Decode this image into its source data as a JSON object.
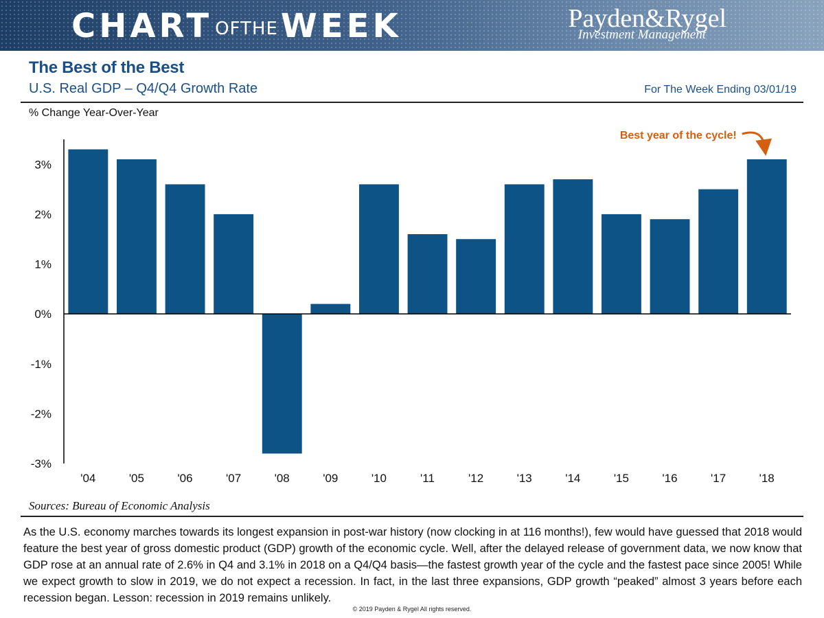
{
  "header": {
    "chart_word": "CHART",
    "of_the": "OFTHE",
    "week_word": "WEEK",
    "brand_name": "Payden&Rygel",
    "brand_tagline": "Investment Management"
  },
  "titles": {
    "main": "The Best of the Best",
    "sub": "U.S. Real GDP – Q4/Q4 Growth Rate",
    "week_ending": "For The Week Ending 03/01/19"
  },
  "chart_data": {
    "type": "bar",
    "title": "U.S. Real GDP – Q4/Q4 Growth Rate",
    "ylabel": "% Change Year-Over-Year",
    "xlabel": "",
    "categories": [
      "'04",
      "'05",
      "'06",
      "'07",
      "'08",
      "'09",
      "'10",
      "'11",
      "'12",
      "'13",
      "'14",
      "'15",
      "'16",
      "'17",
      "'18"
    ],
    "values": [
      3.3,
      3.1,
      2.6,
      2.0,
      -2.8,
      0.2,
      2.6,
      1.6,
      1.5,
      2.6,
      2.7,
      2.0,
      1.9,
      2.5,
      3.1
    ],
    "ylim": [
      -3,
      3.5
    ],
    "yticks": [
      3,
      2,
      1,
      0,
      -1,
      -2,
      -3
    ],
    "ytick_labels": [
      "3%",
      "2%",
      "1%",
      "0%",
      "-1%",
      "-2%",
      "-3%"
    ],
    "grid": false,
    "bar_color": "#0d5385",
    "annotation": {
      "text": "Best year of the cycle!",
      "target_category": "'18",
      "color": "#d45f0e"
    }
  },
  "footer": {
    "sources": "Sources: Bureau of Economic Analysis",
    "commentary": "As the U.S. economy marches towards its longest expansion in post-war history (now clocking in at 116 months!), few would have guessed that 2018 would feature the best year of gross domestic product (GDP) growth of the economic cycle. Well, after the delayed release of government data, we now know that GDP rose at an annual rate of 2.6% in Q4 and 3.1% in 2018 on a Q4/Q4 basis—the fastest growth year of the cycle and the fastest pace since 2005! While we expect growth to slow in 2019, we do not expect a recession. In fact, in the last three expansions, GDP growth “peaked” almost 3 years before each recession began. Lesson: recession in 2019 remains unlikely.",
    "copyright": "© 2019 Payden & Rygel All rights reserved."
  }
}
